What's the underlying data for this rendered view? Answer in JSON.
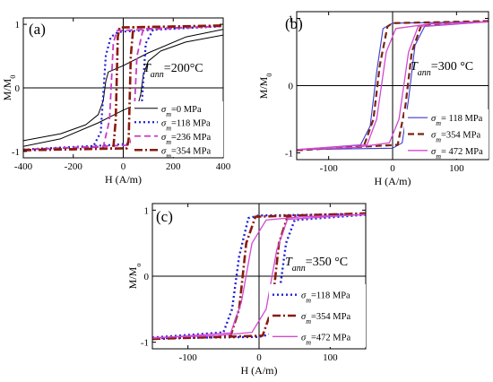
{
  "chart_data": [
    {
      "type": "line",
      "panel_label": "(a)",
      "annotation": {
        "prefix": "T",
        "subscript": "ann",
        "suffix": "=200°C"
      },
      "xlabel": "H (A/m)",
      "ylabel": "M/M",
      "ylabel_sub": "0",
      "xlim": [
        -400,
        400
      ],
      "ylim": [
        -1.1,
        1.1
      ],
      "xticks": [
        -400,
        -200,
        0,
        200,
        400
      ],
      "xtick_labels": [
        "-400",
        "-200",
        "0",
        "200",
        "400"
      ],
      "yticks": [
        -1,
        0,
        1
      ],
      "ytick_labels": [
        "-1",
        "0",
        "1"
      ],
      "legend": {
        "placement": "bottom-right",
        "entries": [
          {
            "sym": "σ",
            "sub": "m",
            "text": "=0 MPa"
          },
          {
            "sym": "σ",
            "sub": "m",
            "text": "=118 MPa"
          },
          {
            "sym": "σ",
            "sub": "m",
            "text": "=236 MPa"
          },
          {
            "sym": "σ",
            "sub": "m",
            "text": "=354 MPa"
          }
        ]
      },
      "series": [
        {
          "color": "#000000",
          "dash": "solid",
          "width": 1,
          "upper": [
            [
              -400,
              -0.83
            ],
            [
              -250,
              -0.72
            ],
            [
              -150,
              -0.58
            ],
            [
              -100,
              -0.42
            ],
            [
              -80,
              -0.2
            ],
            [
              -70,
              0.1
            ],
            [
              -60,
              0.25
            ],
            [
              0,
              0.35
            ],
            [
              100,
              0.55
            ],
            [
              250,
              0.8
            ],
            [
              400,
              0.92
            ]
          ],
          "lower": [
            [
              -400,
              -0.92
            ],
            [
              -250,
              -0.8
            ],
            [
              -100,
              -0.55
            ],
            [
              0,
              -0.35
            ],
            [
              60,
              -0.25
            ],
            [
              70,
              -0.1
            ],
            [
              80,
              0.2
            ],
            [
              100,
              0.42
            ],
            [
              150,
              0.58
            ],
            [
              250,
              0.72
            ],
            [
              400,
              0.83
            ]
          ]
        },
        {
          "color": "#1f1fd6",
          "dash": "dot",
          "width": 2.2,
          "upper": [
            [
              -400,
              -0.97
            ],
            [
              -120,
              -0.92
            ],
            [
              -90,
              -0.7
            ],
            [
              -70,
              0.5
            ],
            [
              -50,
              0.8
            ],
            [
              -20,
              0.88
            ],
            [
              100,
              0.91
            ],
            [
              400,
              0.97
            ]
          ],
          "lower": [
            [
              -400,
              -0.97
            ],
            [
              -100,
              -0.91
            ],
            [
              20,
              -0.88
            ],
            [
              50,
              -0.8
            ],
            [
              70,
              -0.5
            ],
            [
              90,
              0.7
            ],
            [
              120,
              0.92
            ],
            [
              400,
              0.97
            ]
          ]
        },
        {
          "color": "#c83cc8",
          "dash": "dash",
          "width": 1.8,
          "upper": [
            [
              -400,
              -0.97
            ],
            [
              -80,
              -0.93
            ],
            [
              -55,
              -0.5
            ],
            [
              -40,
              0.7
            ],
            [
              -25,
              0.9
            ],
            [
              400,
              0.97
            ]
          ],
          "lower": [
            [
              -400,
              -0.97
            ],
            [
              25,
              -0.9
            ],
            [
              40,
              -0.7
            ],
            [
              55,
              0.5
            ],
            [
              80,
              0.93
            ],
            [
              400,
              0.97
            ]
          ]
        },
        {
          "color": "#8b1a0e",
          "dash": "dashdot",
          "width": 2.6,
          "upper": [
            [
              -400,
              -0.98
            ],
            [
              -40,
              -0.95
            ],
            [
              -30,
              -0.5
            ],
            [
              -22,
              0.8
            ],
            [
              -15,
              0.95
            ],
            [
              400,
              0.98
            ]
          ],
          "lower": [
            [
              -400,
              -0.98
            ],
            [
              15,
              -0.95
            ],
            [
              22,
              -0.8
            ],
            [
              30,
              0.5
            ],
            [
              40,
              0.95
            ],
            [
              400,
              0.98
            ]
          ]
        }
      ]
    },
    {
      "type": "line",
      "panel_label": "(b)",
      "annotation": {
        "prefix": "T",
        "subscript": "ann",
        "suffix": "=300 °C"
      },
      "xlabel": "H (A/m)",
      "ylabel": "M/M",
      "ylabel_sub": "0",
      "xlim": [
        -150,
        150
      ],
      "ylim": [
        -1.1,
        1.1
      ],
      "xticks": [
        -100,
        0,
        100
      ],
      "xtick_labels": [
        "-100",
        "0",
        "100"
      ],
      "yticks": [
        -1,
        0,
        1
      ],
      "ytick_labels": [
        "-1",
        "0",
        "1"
      ],
      "legend": {
        "placement": "bottom-right",
        "entries": [
          {
            "sym": "σ",
            "sub": "m",
            "text": "= 118 MPa"
          },
          {
            "sym": "σ",
            "sub": "m",
            "text": "=354 MPa"
          },
          {
            "sym": "σ",
            "sub": "m",
            "text": "= 472 MPa"
          }
        ]
      },
      "series": [
        {
          "color": "#3a3ad0",
          "dash": "solid",
          "width": 1.1,
          "upper": [
            [
              -150,
              -0.95
            ],
            [
              -50,
              -0.88
            ],
            [
              -35,
              -0.6
            ],
            [
              -25,
              0.2
            ],
            [
              -15,
              0.85
            ],
            [
              0,
              0.93
            ],
            [
              150,
              0.95
            ]
          ],
          "lower": [
            [
              -150,
              -0.95
            ],
            [
              0,
              -0.93
            ],
            [
              15,
              -0.85
            ],
            [
              25,
              -0.2
            ],
            [
              35,
              0.6
            ],
            [
              50,
              0.88
            ],
            [
              150,
              0.95
            ]
          ]
        },
        {
          "color": "#7a2410",
          "dash": "dash",
          "width": 2.2,
          "upper": [
            [
              -150,
              -0.96
            ],
            [
              -45,
              -0.9
            ],
            [
              -30,
              -0.5
            ],
            [
              -20,
              0.3
            ],
            [
              -8,
              0.88
            ],
            [
              0,
              0.93
            ],
            [
              150,
              0.96
            ]
          ],
          "lower": [
            [
              -150,
              -0.96
            ],
            [
              8,
              -0.88
            ],
            [
              20,
              -0.3
            ],
            [
              30,
              0.5
            ],
            [
              45,
              0.9
            ],
            [
              150,
              0.96
            ]
          ]
        },
        {
          "color": "#d24ad2",
          "dash": "solid",
          "width": 1.3,
          "upper": [
            [
              -150,
              -0.95
            ],
            [
              -40,
              -0.88
            ],
            [
              -25,
              -0.5
            ],
            [
              -10,
              0.5
            ],
            [
              5,
              0.85
            ],
            [
              60,
              0.92
            ],
            [
              150,
              0.95
            ]
          ],
          "lower": [
            [
              -150,
              -0.95
            ],
            [
              -60,
              -0.92
            ],
            [
              -5,
              -0.85
            ],
            [
              10,
              -0.5
            ],
            [
              25,
              0.5
            ],
            [
              40,
              0.88
            ],
            [
              150,
              0.95
            ]
          ]
        }
      ]
    },
    {
      "type": "line",
      "panel_label": "(c)",
      "annotation": {
        "prefix": "T",
        "subscript": "ann",
        "suffix": "=350 °C"
      },
      "xlabel": "H (A/m)",
      "ylabel": "M/M",
      "ylabel_sub": "o",
      "xlim": [
        -150,
        150
      ],
      "ylim": [
        -1.1,
        1.1
      ],
      "xticks": [
        -100,
        0,
        100
      ],
      "xtick_labels": [
        "-100",
        "0",
        "100"
      ],
      "yticks": [
        -1,
        0,
        1
      ],
      "ytick_labels": [
        "-1",
        "0",
        "1"
      ],
      "legend": {
        "placement": "bottom-right",
        "entries": [
          {
            "sym": "σ",
            "sub": "m",
            "text": "=118 MPa"
          },
          {
            "sym": "σ",
            "sub": "m",
            "text": "=354 MPa"
          },
          {
            "sym": "σ",
            "sub": "m",
            "text": "=472 MPa"
          }
        ]
      },
      "series": [
        {
          "color": "#1f1fd6",
          "dash": "dot",
          "width": 2.4,
          "upper": [
            [
              -150,
              -0.93
            ],
            [
              -50,
              -0.85
            ],
            [
              -38,
              -0.5
            ],
            [
              -28,
              0.3
            ],
            [
              -15,
              0.88
            ],
            [
              0,
              0.92
            ],
            [
              150,
              0.94
            ]
          ],
          "lower": [
            [
              -150,
              -0.94
            ],
            [
              0,
              -0.92
            ],
            [
              15,
              -0.88
            ],
            [
              28,
              -0.3
            ],
            [
              38,
              0.5
            ],
            [
              50,
              0.85
            ],
            [
              150,
              0.93
            ]
          ]
        },
        {
          "color": "#8b1a0e",
          "dash": "dashdot",
          "width": 2.6,
          "upper": [
            [
              -150,
              -0.95
            ],
            [
              -40,
              -0.9
            ],
            [
              -28,
              -0.5
            ],
            [
              -18,
              0.5
            ],
            [
              -5,
              0.9
            ],
            [
              150,
              0.95
            ]
          ],
          "lower": [
            [
              -150,
              -0.95
            ],
            [
              5,
              -0.9
            ],
            [
              18,
              -0.5
            ],
            [
              28,
              0.5
            ],
            [
              40,
              0.9
            ],
            [
              150,
              0.95
            ]
          ]
        },
        {
          "color": "#d24ad2",
          "dash": "solid",
          "width": 1.3,
          "upper": [
            [
              -150,
              -0.94
            ],
            [
              -40,
              -0.86
            ],
            [
              -25,
              -0.4
            ],
            [
              -10,
              0.5
            ],
            [
              10,
              0.85
            ],
            [
              60,
              0.9
            ],
            [
              150,
              0.93
            ]
          ],
          "lower": [
            [
              -150,
              -0.93
            ],
            [
              -60,
              -0.9
            ],
            [
              -10,
              -0.85
            ],
            [
              10,
              -0.5
            ],
            [
              25,
              0.4
            ],
            [
              40,
              0.86
            ],
            [
              150,
              0.94
            ]
          ]
        }
      ]
    }
  ]
}
